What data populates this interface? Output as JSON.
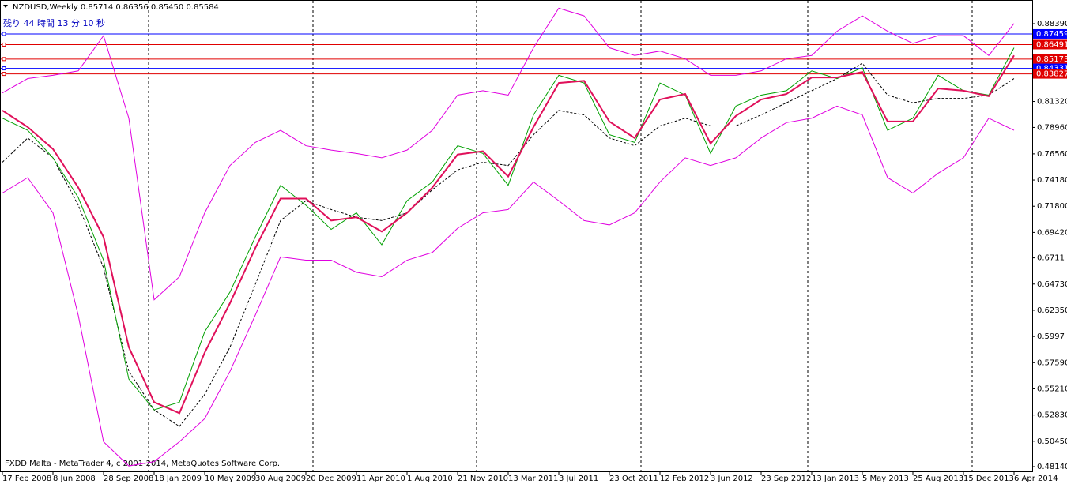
{
  "chart_data": {
    "type": "line",
    "title": "NZDUSD,Weekly  0.85714 0.86356 0.85450 0.85584",
    "subtitle": "残り 44 時間 13 分 10 秒",
    "footer": "FXDD Malta - MetaTrader 4, c 2001-2014, MetaQuotes Software Corp.",
    "categories": [
      "17 Feb 2008",
      null,
      "8 Jun 2008",
      null,
      "28 Sep 2008",
      null,
      "18 Jan 2009",
      null,
      "10 May 2009",
      null,
      "30 Aug 2009",
      null,
      "20 Dec 2009",
      null,
      "11 Apr 2010",
      null,
      "1 Aug 2010",
      null,
      "21 Nov 2010",
      null,
      "13 Mar 2011",
      null,
      "3 Jul 2011",
      null,
      "23 Oct 2011",
      null,
      "12 Feb 2012",
      null,
      "3 Jun 2012",
      null,
      "23 Sep 2012",
      null,
      "13 Jan 2013",
      null,
      "5 May 2013",
      null,
      "25 Aug 2013",
      null,
      "15 Dec 2013",
      null,
      "6 Apr 2014"
    ],
    "series": [
      {
        "color": "#e000e0",
        "style": "solid",
        "values": [
          0.821,
          0.834,
          0.837,
          0.841,
          0.873,
          0.798,
          0.633,
          0.654,
          0.712,
          0.755,
          0.776,
          0.787,
          0.773,
          0.769,
          0.766,
          0.762,
          0.769,
          0.787,
          0.819,
          0.823,
          0.819,
          0.862,
          0.898,
          0.891,
          0.862,
          0.855,
          0.859,
          0.852,
          0.837,
          0.837,
          0.841,
          0.852,
          0.855,
          0.877,
          0.891,
          0.877,
          0.866,
          0.873,
          0.873,
          0.855,
          0.884
        ]
      },
      {
        "color": "#e000e0",
        "style": "solid",
        "values": [
          0.73,
          0.744,
          0.712,
          0.619,
          0.504,
          0.482,
          0.486,
          0.504,
          0.525,
          0.568,
          0.619,
          0.672,
          0.669,
          0.669,
          0.658,
          0.654,
          0.669,
          0.676,
          0.698,
          0.712,
          0.715,
          0.74,
          0.723,
          0.705,
          0.701,
          0.712,
          0.74,
          0.762,
          0.755,
          0.762,
          0.78,
          0.794,
          0.798,
          0.809,
          0.801,
          0.744,
          0.73,
          0.748,
          0.762,
          0.798,
          0.787
        ]
      },
      {
        "color": "#000000",
        "style": "dashed",
        "values": [
          0.758,
          0.78,
          0.762,
          0.719,
          0.662,
          0.568,
          0.533,
          0.518,
          0.547,
          0.59,
          0.647,
          0.705,
          0.723,
          0.715,
          0.708,
          0.705,
          0.712,
          0.733,
          0.751,
          0.758,
          0.755,
          0.783,
          0.805,
          0.801,
          0.78,
          0.773,
          0.791,
          0.798,
          0.791,
          0.791,
          0.801,
          0.812,
          0.823,
          0.834,
          0.848,
          0.819,
          0.812,
          0.816,
          0.816,
          0.819,
          0.834
        ]
      },
      {
        "color": "#00a000",
        "style": "solid",
        "values": [
          0.798,
          0.787,
          0.762,
          0.726,
          0.669,
          0.561,
          0.533,
          0.54,
          0.604,
          0.64,
          0.69,
          0.737,
          0.719,
          0.697,
          0.712,
          0.683,
          0.723,
          0.74,
          0.773,
          0.766,
          0.737,
          0.801,
          0.837,
          0.83,
          0.783,
          0.776,
          0.83,
          0.819,
          0.766,
          0.809,
          0.819,
          0.823,
          0.841,
          0.834,
          0.844,
          0.787,
          0.798,
          0.837,
          0.823,
          0.819,
          0.862
        ]
      },
      {
        "color": "#e0105a",
        "style": "solid",
        "values": [
          0.805,
          0.79,
          0.77,
          0.735,
          0.69,
          0.59,
          0.54,
          0.53,
          0.585,
          0.63,
          0.68,
          0.725,
          0.725,
          0.705,
          0.708,
          0.695,
          0.712,
          0.735,
          0.765,
          0.768,
          0.745,
          0.79,
          0.83,
          0.832,
          0.795,
          0.78,
          0.815,
          0.82,
          0.775,
          0.8,
          0.815,
          0.82,
          0.835,
          0.835,
          0.84,
          0.795,
          0.795,
          0.825,
          0.823,
          0.818,
          0.855
        ]
      }
    ],
    "ylim": [
      0.4771,
      0.9047
    ],
    "yticks": [
      {
        "value": 0.8839,
        "label": "0.88390"
      },
      {
        "value": 0.8132,
        "label": "0.81320"
      },
      {
        "value": 0.7896,
        "label": "0.78960"
      },
      {
        "value": 0.7656,
        "label": "0.76560"
      },
      {
        "value": 0.7418,
        "label": "0.74180"
      },
      {
        "value": 0.718,
        "label": "0.71800"
      },
      {
        "value": 0.6942,
        "label": "0.69420"
      },
      0.6711,
      {
        "value": 0.6473,
        "label": "0.64730"
      },
      {
        "value": 0.6235,
        "label": "0.62350"
      },
      0.5997,
      {
        "value": 0.5759,
        "label": "0.57590"
      },
      {
        "value": 0.5521,
        "label": "0.55210"
      },
      {
        "value": 0.5283,
        "label": "0.52830"
      },
      {
        "value": 0.5045,
        "label": "0.50450"
      },
      {
        "value": 0.4814,
        "label": "0.48140"
      }
    ],
    "levels": [
      {
        "value": 0.87459,
        "color": "#0000ff"
      },
      {
        "value": 0.86491,
        "color": "#e00000"
      },
      {
        "value": 0.85173,
        "color": "#e00000"
      },
      {
        "value": 0.84331,
        "color": "#0000ff"
      },
      {
        "value": 0.83827,
        "color": "#e00000"
      }
    ]
  }
}
